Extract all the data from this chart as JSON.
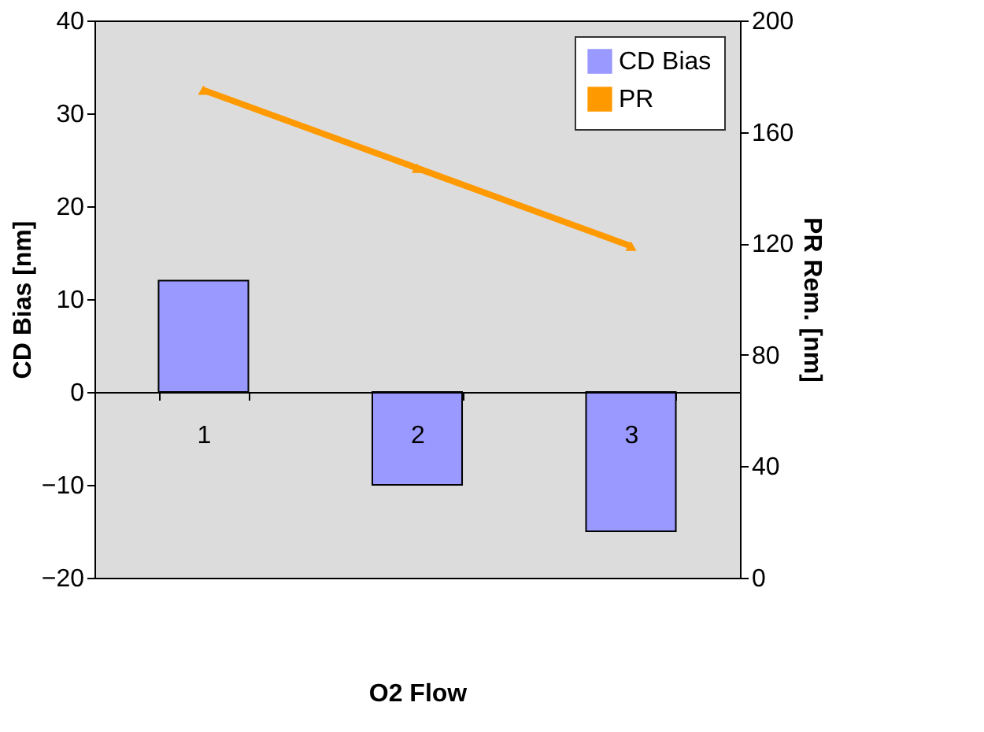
{
  "chart_data": {
    "type": "bar",
    "categories": [
      "1",
      "2",
      "3"
    ],
    "xlabel": "O2 Flow",
    "ylabel": "CD Bias [nm]",
    "y2label": "PR Rem. [nm]",
    "series": [
      {
        "name": "CD Bias",
        "color": "#9999ff",
        "values": [
          12,
          -10,
          -15
        ]
      },
      {
        "name": "PR",
        "type": "line",
        "axis": "y2",
        "color": "#ff9900",
        "marker": "triangle",
        "values": [
          175,
          147,
          119
        ]
      }
    ],
    "ylim": [
      -20,
      40
    ],
    "yticks": [
      -20,
      -10,
      0,
      10,
      20,
      30,
      40
    ],
    "y2lim": [
      0,
      200
    ],
    "y2ticks": [
      0,
      40,
      80,
      120,
      160,
      200
    ],
    "grid": false,
    "legend": "top right"
  }
}
